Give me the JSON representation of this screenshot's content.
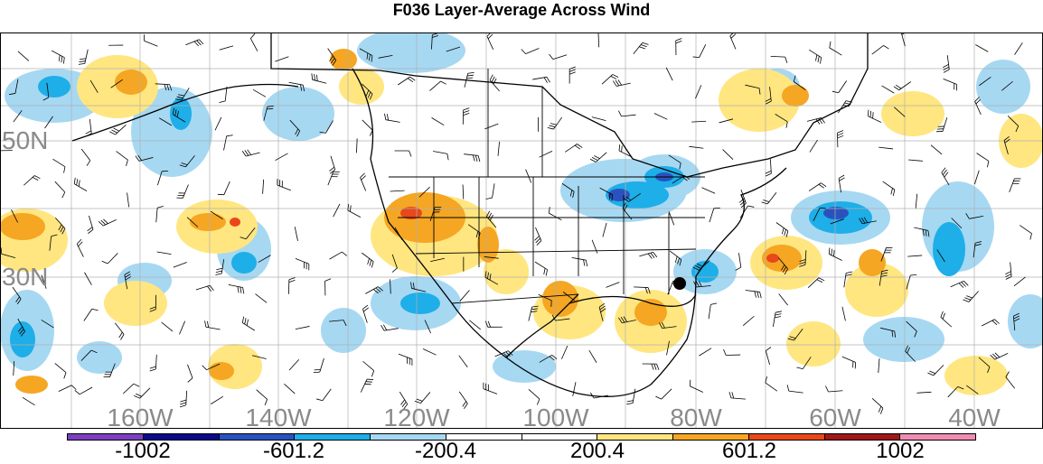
{
  "title": "F036 Layer-Average Across Wind",
  "map": {
    "lat_labels": [
      "50N",
      "30N"
    ],
    "lon_labels": [
      "160W",
      "140W",
      "120W",
      "100W",
      "80W",
      "60W",
      "40W"
    ]
  },
  "colorbar": {
    "colors": [
      "#7b3fbf",
      "#0a0a8a",
      "#2a52be",
      "#1eaee8",
      "#a6d8f2",
      "#ffffff",
      "#ffffff",
      "#ffe680",
      "#f5a623",
      "#e8481a",
      "#a01818",
      "#f08cb4"
    ],
    "labels": [
      "-1002",
      "-601.2",
      "-200.4",
      "200.4",
      "601.2",
      "1002"
    ]
  },
  "colors": {
    "strong_negative": "#2a52be",
    "negative": "#1eaee8",
    "weak_negative": "#a6d8f2",
    "weak_positive": "#ffe680",
    "positive": "#f5a623",
    "strong_positive": "#e8481a"
  }
}
